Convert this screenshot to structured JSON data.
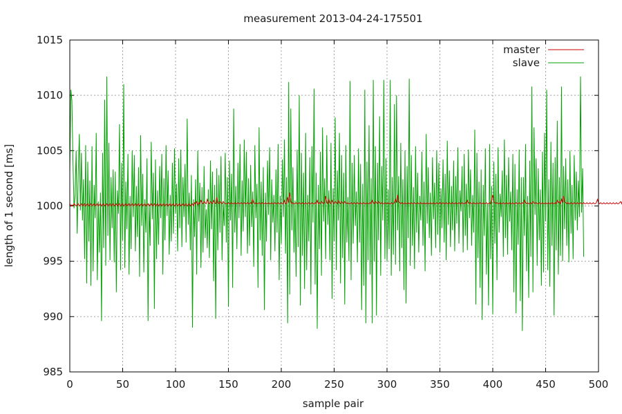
{
  "chart_data": {
    "type": "line",
    "title": "measurement 2013-04-24-175501",
    "xlabel": "sample pair",
    "ylabel": "length of 1 second [ms]",
    "xlim": [
      0,
      500
    ],
    "ylim": [
      985,
      1015
    ],
    "x_ticks": [
      "0",
      "50",
      "100",
      "150",
      "200",
      "250",
      "300",
      "350",
      "400",
      "450",
      "500"
    ],
    "y_ticks": [
      "985",
      "990",
      "995",
      "1000",
      "1005",
      "1010",
      "1015"
    ],
    "grid": true,
    "legend_position": "top-right",
    "series": [
      {
        "name": "master",
        "color": "#cc0000",
        "x_start": 0,
        "x_step": 1,
        "values": [
          1000.2,
          1000.0,
          1000.1,
          1000.0,
          1000.2,
          1000.1,
          1000.0,
          1000.1,
          1000.2,
          1000.0,
          1000.1,
          1000.2,
          1000.0,
          1000.1,
          1000.2,
          1000.0,
          1000.1,
          1000.2,
          1000.0,
          1000.1,
          1000.2,
          1000.0,
          1000.1,
          1000.2,
          1000.0,
          1000.1,
          1000.2,
          1000.0,
          1000.1,
          1000.2,
          1000.0,
          1000.1,
          1000.2,
          1000.0,
          1000.1,
          1000.2,
          1000.0,
          1000.1,
          1000.2,
          1000.0,
          1000.1,
          1000.2,
          1000.0,
          1000.1,
          1000.2,
          1000.0,
          1000.1,
          1000.2,
          1000.0,
          1000.1,
          1000.2,
          1000.0,
          1000.1,
          1000.2,
          1000.0,
          1000.1,
          1000.2,
          1000.0,
          1000.1,
          1000.2,
          1000.0,
          1000.1,
          1000.2,
          1000.0,
          1000.1,
          1000.2,
          1000.0,
          1000.1,
          1000.2,
          1000.0,
          1000.1,
          1000.2,
          1000.0,
          1000.1,
          1000.2,
          1000.0,
          1000.1,
          1000.2,
          1000.0,
          1000.1,
          1000.2,
          1000.0,
          1000.1,
          1000.2,
          1000.0,
          1000.1,
          1000.2,
          1000.0,
          1000.1,
          1000.2,
          1000.0,
          1000.1,
          1000.2,
          1000.0,
          1000.1,
          1000.2,
          1000.0,
          1000.1,
          1000.2,
          1000.0,
          1000.1,
          1000.2,
          1000.0,
          1000.1,
          1000.2,
          1000.0,
          1000.1,
          1000.2,
          1000.0,
          1000.1,
          1000.2,
          1000.0,
          1000.1,
          1000.2,
          1000.0,
          1000.1,
          1000.2,
          1000.0,
          1000.3,
          1000.2,
          1000.4,
          1000.1,
          1000.3,
          1000.2,
          1000.5,
          1000.3,
          1000.2,
          1000.4,
          1000.3,
          1000.2,
          1000.6,
          1000.3,
          1000.2,
          1000.4,
          1000.3,
          1000.2,
          1000.5,
          1000.3,
          1000.2,
          1000.8,
          1000.3,
          1000.2,
          1000.4,
          1000.3,
          1000.2,
          1000.4,
          1000.3,
          1000.2,
          1000.2,
          1000.2,
          1000.3,
          1000.2,
          1000.2,
          1000.3,
          1000.2,
          1000.2,
          1000.3,
          1000.2,
          1000.2,
          1000.3,
          1000.2,
          1000.2,
          1000.3,
          1000.2,
          1000.2,
          1000.3,
          1000.2,
          1000.2,
          1000.3,
          1000.2,
          1000.2,
          1000.3,
          1000.2,
          1000.6,
          1000.3,
          1000.2,
          1000.3,
          1000.2,
          1000.2,
          1000.3,
          1000.2,
          1000.2,
          1000.3,
          1000.2,
          1000.2,
          1000.3,
          1000.2,
          1000.2,
          1000.3,
          1000.2,
          1000.2,
          1000.3,
          1000.2,
          1000.2,
          1000.3,
          1000.2,
          1000.2,
          1000.3,
          1000.2,
          1000.2,
          1000.3,
          1000.2,
          1000.2,
          1000.5,
          1000.2,
          1000.2,
          1000.8,
          1000.3,
          1001.2,
          1000.4,
          1000.2,
          1000.3,
          1000.2,
          1000.2,
          1000.3,
          1000.2,
          1000.2,
          1000.3,
          1000.2,
          1000.2,
          1000.3,
          1000.2,
          1000.2,
          1000.3,
          1000.2,
          1000.2,
          1000.3,
          1000.2,
          1000.2,
          1000.3,
          1000.2,
          1000.2,
          1000.3,
          1000.2,
          1000.5,
          1000.2,
          1000.3,
          1000.2,
          1000.4,
          1000.3,
          1000.2,
          1000.3,
          1000.9,
          1000.3,
          1000.2,
          1000.6,
          1000.3,
          1000.2,
          1000.5,
          1000.3,
          1000.2,
          1000.4,
          1000.3,
          1000.2,
          1000.5,
          1000.3,
          1000.2,
          1000.4,
          1000.3,
          1000.2,
          1000.4,
          1000.3,
          1000.2,
          1000.3,
          1000.2,
          1000.2,
          1000.3,
          1000.2,
          1000.2,
          1000.3,
          1000.2,
          1000.2,
          1000.3,
          1000.2,
          1000.2,
          1000.3,
          1000.2,
          1000.2,
          1000.3,
          1000.2,
          1000.2,
          1000.3,
          1000.2,
          1000.2,
          1000.3,
          1000.2,
          1000.5,
          1000.3,
          1000.2,
          1000.4,
          1000.3,
          1000.2,
          1000.4,
          1000.3,
          1000.2,
          1000.3,
          1000.2,
          1000.2,
          1000.3,
          1000.2,
          1000.2,
          1000.3,
          1000.2,
          1000.2,
          1000.3,
          1000.2,
          1000.2,
          1000.3,
          1000.6,
          1000.3,
          1001.0,
          1000.4,
          1000.3,
          1000.2,
          1000.3,
          1000.2,
          1000.2,
          1000.3,
          1000.2,
          1000.2,
          1000.3,
          1000.2,
          1000.2,
          1000.3,
          1000.2,
          1000.2,
          1000.3,
          1000.2,
          1000.2,
          1000.3,
          1000.2,
          1000.2,
          1000.3,
          1000.2,
          1000.2,
          1000.3,
          1000.2,
          1000.2,
          1000.3,
          1000.2,
          1000.2,
          1000.3,
          1000.2,
          1000.2,
          1000.3,
          1000.2,
          1000.2,
          1000.3,
          1000.2,
          1000.2,
          1000.3,
          1000.2,
          1000.2,
          1000.3,
          1000.2,
          1000.2,
          1000.3,
          1000.2,
          1000.2,
          1000.3,
          1000.2,
          1000.2,
          1000.3,
          1000.2,
          1000.2,
          1000.3,
          1000.2,
          1000.2,
          1000.3,
          1000.2,
          1000.2,
          1000.3,
          1000.2,
          1000.2,
          1000.3,
          1000.2,
          1000.5,
          1000.3,
          1000.2,
          1000.3,
          1000.2,
          1000.2,
          1000.3,
          1000.2,
          1000.2,
          1000.3,
          1000.2,
          1000.2,
          1000.3,
          1000.2,
          1000.2,
          1000.3,
          1000.2,
          1000.2,
          1000.3,
          1000.2,
          1000.2,
          1000.3,
          1000.2,
          1000.6,
          1001.0,
          1000.4,
          1000.3,
          1000.2,
          1000.3,
          1000.2,
          1000.2,
          1000.3,
          1000.2,
          1000.2,
          1000.3,
          1000.2,
          1000.2,
          1000.3,
          1000.2,
          1000.2,
          1000.3,
          1000.2,
          1000.2,
          1000.3,
          1000.2,
          1000.2,
          1000.3,
          1000.2,
          1000.2,
          1000.3,
          1000.2,
          1000.2,
          1000.3,
          1000.2,
          1000.5,
          1000.3,
          1000.2,
          1000.3,
          1000.2,
          1000.2,
          1000.3,
          1000.2,
          1000.4,
          1000.3,
          1000.2,
          1000.3,
          1000.2,
          1000.2,
          1000.3,
          1000.2,
          1000.2,
          1000.3,
          1000.2,
          1000.2,
          1000.3,
          1000.2,
          1000.2,
          1000.3,
          1000.2,
          1000.2,
          1000.3,
          1000.2,
          1000.2,
          1000.3,
          1000.2,
          1000.5,
          1000.3,
          1000.4,
          1000.2,
          1000.6,
          1000.3,
          1000.9,
          1000.4,
          1000.3,
          1000.2,
          1000.3,
          1000.2,
          1000.2,
          1000.3,
          1000.2,
          1000.2,
          1000.3,
          1000.2,
          1000.2,
          1000.3,
          1000.2,
          1000.2,
          1000.3,
          1000.2,
          1000.2,
          1000.3,
          1000.2,
          1000.2,
          1000.3,
          1000.2,
          1000.2,
          1000.3,
          1000.2,
          1000.2,
          1000.3,
          1000.2,
          1000.2,
          1000.3,
          1000.6,
          1000.3,
          1000.2,
          1000.3,
          1000.2,
          1000.2,
          1000.3,
          1000.2,
          1000.2,
          1000.3,
          1000.2,
          1000.2,
          1000.3,
          1000.2,
          1000.2,
          1000.3,
          1000.2,
          1000.2,
          1000.3,
          1000.2,
          1000.2,
          1000.3,
          1000.4,
          1000.2,
          1000.6,
          1000.3,
          1000.2
        ]
      },
      {
        "name": "slave",
        "color": "#00a000",
        "x_start": 0,
        "x_step": 1,
        "values": [
          1003,
          1010.5,
          1009.5,
          1004,
          999.8,
          1001,
          1005,
          997.5,
          1003,
          1006.5,
          999.6,
          1004.8,
          998.7,
          1002.4,
          995.2,
          1005.5,
          993.0,
          1004.0,
          996.8,
          1002.3,
          992.8,
          1005.4,
          994.1,
          1001.9,
          998.9,
          1006.6,
          993.3,
          1000.4,
          995.8,
          1001.2,
          989.6,
          1004.8,
          996.2,
          1009.6,
          994.6,
          1011.7,
          997.3,
          1005.7,
          995.1,
          1002.6,
          998.0,
          1003.3,
          994.9,
          1003.1,
          992.2,
          1001.4,
          999.3,
          1007.4,
          994.2,
          1003.9,
          996.9,
          1011.0,
          994.4,
          1002.2,
          997.9,
          1004.7,
          993.8,
          1000.9,
          996.1,
          1005.0,
          999.0,
          1004.6,
          995.9,
          1001.8,
          997.2,
          1003.5,
          993.6,
          1006.4,
          998.2,
          1002.9,
          994.0,
          1000.6,
          997.6,
          1004.3,
          989.6,
          1000.2,
          996.4,
          1005.8,
          998.8,
          1003.0,
          990.7,
          1004.2,
          995.2,
          1001.4,
          996.5,
          1003.6,
          998.9,
          1004.7,
          993.8,
          1002.5,
          996.9,
          1005.5,
          999.1,
          1003.2,
          995.6,
          1001.0,
          996.8,
          1003.9,
          997.5,
          1005.2,
          999.3,
          1002.0,
          995.9,
          1004.3,
          998.0,
          1005.1,
          996.3,
          1002.6,
          999.0,
          1003.8,
          996.7,
          1007.9,
          998.3,
          1001.2,
          996.0,
          1002.8,
          989.0,
          1000.6,
          997.2,
          1002.4,
          993.8,
          1005.0,
          998.6,
          1002.1,
          994.4,
          1001.7,
          995.8,
          1003.6,
          997.1,
          999.7,
          996.2,
          1001.5,
          995.3,
          1004.1,
          997.9,
          1003.1,
          993.2,
          1001.9,
          989.8,
          1003.4,
          996.0,
          1002.8,
          997.6,
          1004.5,
          995.1,
          1000.3,
          998.2,
          1004.8,
          996.7,
          1002.6,
          990.9,
          1004.1,
          998.7,
          1002.9,
          992.6,
          1008.8,
          997.6,
          1001.8,
          996.1,
          1003.9,
          998.9,
          1005.6,
          995.5,
          1002.3,
          997.7,
          1006.0,
          999.0,
          1004.9,
          995.7,
          1002.5,
          996.4,
          1003.7,
          998.1,
          1001.3,
          994.5,
          1005.5,
          998.9,
          1002.0,
          992.6,
          1007.1,
          996.9,
          1002.2,
          995.5,
          1003.5,
          990.6,
          1001.2,
          996.8,
          1004.1,
          999.2,
          1005.3,
          995.1,
          1002.4,
          998.5,
          1001.0,
          995.9,
          1003.3,
          997.6,
          1005.6,
          993.3,
          1000.9,
          996.6,
          1004.2,
          999.0,
          1006.0,
          995.7,
          1002.6,
          989.4,
          1011.2,
          992.0,
          1008.8,
          997.8,
          1003.5,
          995.8,
          1000.5,
          993.6,
          1005.1,
          996.3,
          1010.0,
          991.0,
          1004.8,
          995.5,
          1003.0,
          992.5,
          1006.6,
          994.2,
          1001.0,
          996.8,
          1004.4,
          992.0,
          1005.4,
          998.5,
          1010.6,
          992.9,
          1003.0,
          988.9,
          1001.9,
          996.1,
          1004.9,
          993.7,
          1007.1,
          998.6,
          1002.5,
          995.2,
          1006.4,
          998.3,
          1001.4,
          995.1,
          1005.7,
          991.6,
          1001.6,
          996.8,
          1008.0,
          994.2,
          1003.2,
          998.7,
          1006.6,
          993.0,
          1004.6,
          995.3,
          1003.0,
          991.1,
          1005.5,
          996.7,
          1000.8,
          995.0,
          1011.3,
          993.3,
          1003.9,
          996.6,
          1004.6,
          998.2,
          1001.3,
          994.9,
          1005.2,
          996.7,
          1003.8,
          990.6,
          1002.0,
          992.8,
          1010.5,
          989.4,
          1004.0,
          995.1,
          1007.3,
          993.8,
          1002.5,
          989.4,
          1011.4,
          995.0,
          1005.4,
          990.1,
          1003.9,
          996.9,
          1008.1,
          993.7,
          1003.6,
          998.7,
          1011.4,
          995.2,
          1004.3,
          995.0,
          1001.5,
          996.1,
          1011.4,
          993.7,
          1002.6,
          995.6,
          1009.2,
          994.7,
          1010.0,
          997.8,
          1002.7,
          994.1,
          1005.7,
          996.2,
          1002.4,
          992.4,
          1005.0,
          991.2,
          1003.6,
          997.1,
          1011.5,
          994.6,
          1004.6,
          996.4,
          1001.7,
          994.3,
          1005.4,
          997.6,
          1003.0,
          995.8,
          1000.9,
          998.7,
          1004.9,
          996.4,
          1002.2,
          994.1,
          1006.5,
          998.4,
          1003.5,
          997.1,
          1001.2,
          995.5,
          1004.4,
          998.8,
          1002.1,
          996.2,
          1005.0,
          997.4,
          1003.9,
          995.8,
          1001.6,
          998.0,
          1004.2,
          996.7,
          1002.9,
          995.1,
          1005.9,
          998.3,
          1003.2,
          996.3,
          1001.8,
          997.8,
          1004.1,
          995.9,
          1002.7,
          998.4,
          1005.3,
          996.6,
          1001.4,
          999.5,
          1003.6,
          995.8,
          1004.7,
          997.3,
          1002.0,
          996.0,
          1005.1,
          998.9,
          1003.3,
          996.4,
          1001.0,
          997.6,
          1006.9,
          991.1,
          1004.8,
          995.3,
          1002.2,
          992.6,
          1003.3,
          989.7,
          1001.9,
          997.3,
          1005.2,
          993.8,
          1000.2,
          991.0,
          1005.6,
          995.2,
          1001.8,
          990.2,
          1004.0,
          996.6,
          1002.9,
          993.3,
          1005.3,
          997.6,
          1001.1,
          999.0,
          1003.2,
          995.4,
          1006.0,
          997.1,
          1002.8,
          995.6,
          1004.4,
          998.6,
          1001.3,
          996.0,
          1004.7,
          992.2,
          1003.8,
          990.3,
          1001.5,
          996.5,
          1005.1,
          991.4,
          1002.6,
          988.7,
          1002.6,
          997.3,
          1005.6,
          994.1,
          1000.9,
          991.7,
          1004.1,
          995.4,
          1010.8,
          992.2,
          1007.1,
          999.2,
          1004.3,
          994.6,
          1003.4,
          996.9,
          1001.5,
          992.8,
          1004.9,
          994.0,
          1006.6,
          998.6,
          1010.5,
          994.2,
          1002.4,
          992.7,
          1005.8,
          996.4,
          1003.9,
          990.1,
          1004.4,
          996.0,
          1007.7,
          993.8,
          1002.6,
          995.5,
          1010.8,
          995.0,
          1003.6,
          997.9,
          1004.3,
          996.4,
          1002.4,
          994.9,
          1005.0,
          997.5,
          1001.9,
          995.2,
          1004.6,
          998.7,
          1003.1,
          997.8,
          1002.3,
          999.0,
          1011.7,
          999.4,
          1003.4,
          995.4
        ]
      }
    ]
  }
}
